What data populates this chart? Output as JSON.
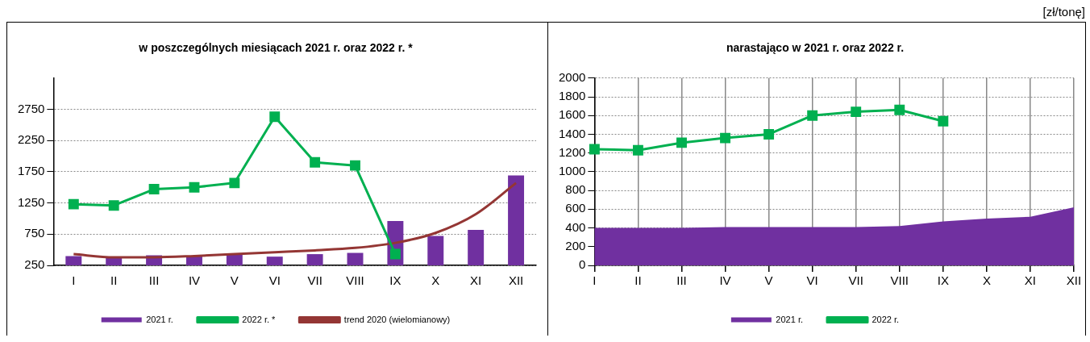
{
  "chart_data": [
    {
      "type": "bar",
      "title": "w poszczególnych miesiącach 2021 r. oraz 2022 r. *",
      "categories": [
        "I",
        "II",
        "III",
        "IV",
        "V",
        "VI",
        "VII",
        "VIII",
        "IX",
        "X",
        "XI",
        "XII"
      ],
      "series": [
        {
          "name": "2021 r.",
          "color": "#7030a0",
          "values": [
            400,
            390,
            410,
            400,
            430,
            390,
            430,
            450,
            960,
            720,
            820,
            1690
          ]
        },
        {
          "name": "2022 r. *",
          "type": "line",
          "color": "#00b050",
          "marker": "square",
          "values": [
            1230,
            1210,
            1470,
            1500,
            1570,
            2630,
            1900,
            1850,
            430,
            null,
            null,
            null
          ]
        },
        {
          "name": "trend 2020 (wielomianowy)",
          "type": "line",
          "color": "#943634",
          "marker": "none",
          "values": [
            430,
            380,
            380,
            400,
            430,
            460,
            490,
            530,
            610,
            770,
            1070,
            1570
          ]
        }
      ],
      "ylim": [
        250,
        3250
      ],
      "yticks": [
        250,
        750,
        1250,
        1750,
        2250,
        2750
      ],
      "grid": "y",
      "legend": "bottom"
    },
    {
      "type": "area",
      "title": "narastająco w 2021 r. oraz 2022 r.",
      "annotations": [
        "[zł/tonę]"
      ],
      "categories": [
        "I",
        "II",
        "III",
        "IV",
        "V",
        "VI",
        "VII",
        "VIII",
        "IX",
        "X",
        "XI",
        "XII"
      ],
      "series": [
        {
          "name": "2021 r.",
          "color": "#7030a0",
          "values": [
            400,
            400,
            400,
            410,
            410,
            410,
            410,
            420,
            470,
            500,
            520,
            620
          ]
        },
        {
          "name": "2022 r.",
          "type": "line",
          "color": "#00b050",
          "marker": "square",
          "values": [
            1240,
            1230,
            1310,
            1360,
            1400,
            1600,
            1640,
            1660,
            1540,
            null,
            null,
            null
          ]
        }
      ],
      "ylim": [
        0,
        2000
      ],
      "yticks": [
        0,
        200,
        400,
        600,
        800,
        1000,
        1200,
        1400,
        1600,
        1800,
        2000
      ],
      "grid": true,
      "legend": "bottom"
    }
  ]
}
